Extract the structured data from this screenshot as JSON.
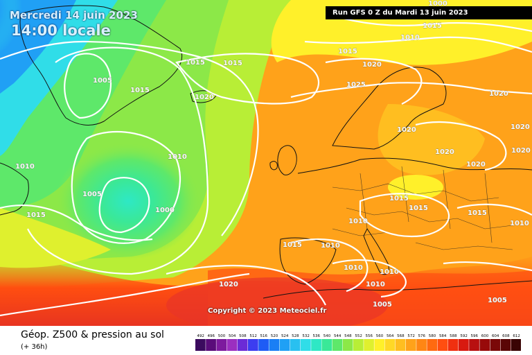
{
  "header": {
    "date": "Mercredi 14 juin 2023",
    "time": "14:00 locale",
    "run": "Run GFS 0 Z du Mardi 13 juin 2023"
  },
  "copyright": "Copyright © 2023 Meteociel.fr",
  "footer": {
    "title": "Géop. Z500 & pression au sol",
    "subtitle": "(+ 36h)"
  },
  "scale": {
    "values": [
      "492",
      "496",
      "500",
      "504",
      "508",
      "512",
      "516",
      "520",
      "524",
      "528",
      "532",
      "536",
      "540",
      "544",
      "548",
      "552",
      "556",
      "560",
      "564",
      "568",
      "572",
      "576",
      "580",
      "584",
      "588",
      "592",
      "596",
      "600",
      "604",
      "608",
      "612"
    ],
    "colors": [
      "#3b0b5e",
      "#5a0c7a",
      "#7d1a9e",
      "#9b2fc0",
      "#6b2bd6",
      "#3c3df0",
      "#1e5cf5",
      "#1a7ff5",
      "#20a0f5",
      "#29c0f0",
      "#30dde8",
      "#2ee8c5",
      "#3ae898",
      "#5ee86a",
      "#8ce848",
      "#b8ee36",
      "#dff02e",
      "#fff02a",
      "#ffd826",
      "#ffbe20",
      "#ffa21a",
      "#ff8614",
      "#ff6a10",
      "#ff4e10",
      "#f03010",
      "#d81a10",
      "#b81010",
      "#980a0a",
      "#7a0808",
      "#5a0606",
      "#3a0404"
    ]
  },
  "isobars": [
    "1000",
    "1005",
    "1005",
    "1005",
    "1010",
    "1010",
    "1010",
    "1010",
    "1010",
    "1010",
    "1010",
    "1010",
    "1010",
    "1015",
    "1015",
    "1015",
    "1015",
    "1015",
    "1015",
    "1015",
    "1015",
    "1015",
    "1015",
    "1020",
    "1020",
    "1020",
    "1020",
    "1020",
    "1020",
    "1020",
    "1020",
    "1020",
    "1025",
    "1005",
    "1000"
  ],
  "colors": {
    "low": "#5ad86a",
    "high": "#f0a020",
    "ocean_cold": "#1a6cf0",
    "hot": "#e84030"
  }
}
